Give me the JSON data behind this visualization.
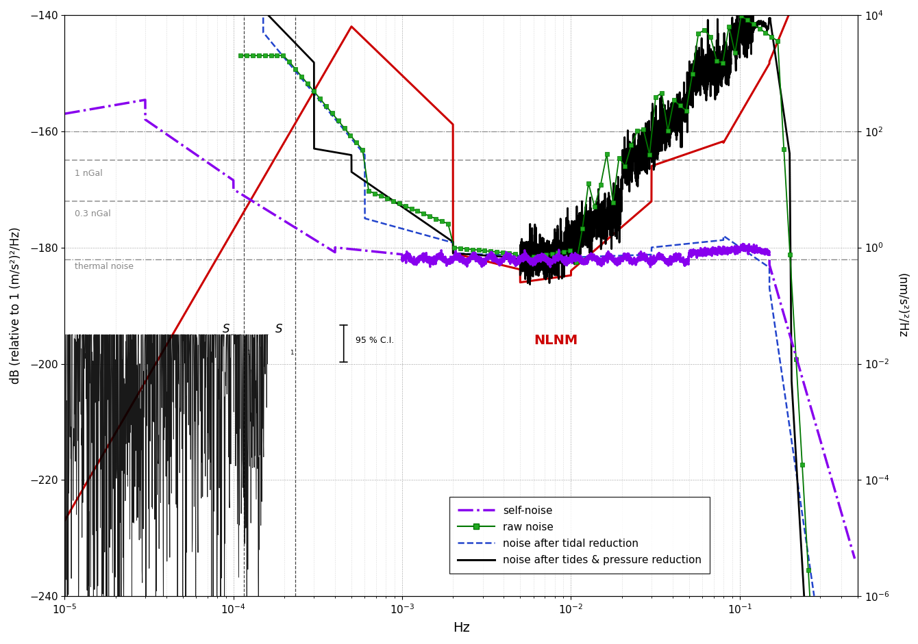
{
  "xlabel": "Hz",
  "ylabel_left": "dB (relative to 1 (m/s²)²/Hz)",
  "ylabel_right": "(nm/s²)²/Hz",
  "xlim": [
    1e-05,
    0.5
  ],
  "ylim": [
    -240,
    -140
  ],
  "ylim_right": [
    1e-06,
    10000.0
  ],
  "hline_160": -160,
  "hline_thermal": -182,
  "hline_1nGal_y": -165,
  "hline_03nGal_y": -172,
  "label_1nGal": "1 nGal",
  "label_03nGal": "0.3 nGal",
  "label_thermal": "thermal noise",
  "vline_S1a": 0.0001157,
  "vline_S1b": 0.0002315,
  "label_NLNM": "NLNM",
  "label_95ci": "95 % C.I.",
  "label_self": "self-noise",
  "label_raw": "raw noise",
  "label_tidal": "noise after tidal reduction",
  "label_pressure": "noise after tides & pressure reduction",
  "color_self": "#8800ee",
  "color_raw": "#007700",
  "color_tidal": "#2244cc",
  "color_pressure": "#000000",
  "color_nlnm": "#cc0000",
  "color_hline_ref": "#888888",
  "color_hline_ngal": "#aaaaaa",
  "color_vline": "#444444"
}
